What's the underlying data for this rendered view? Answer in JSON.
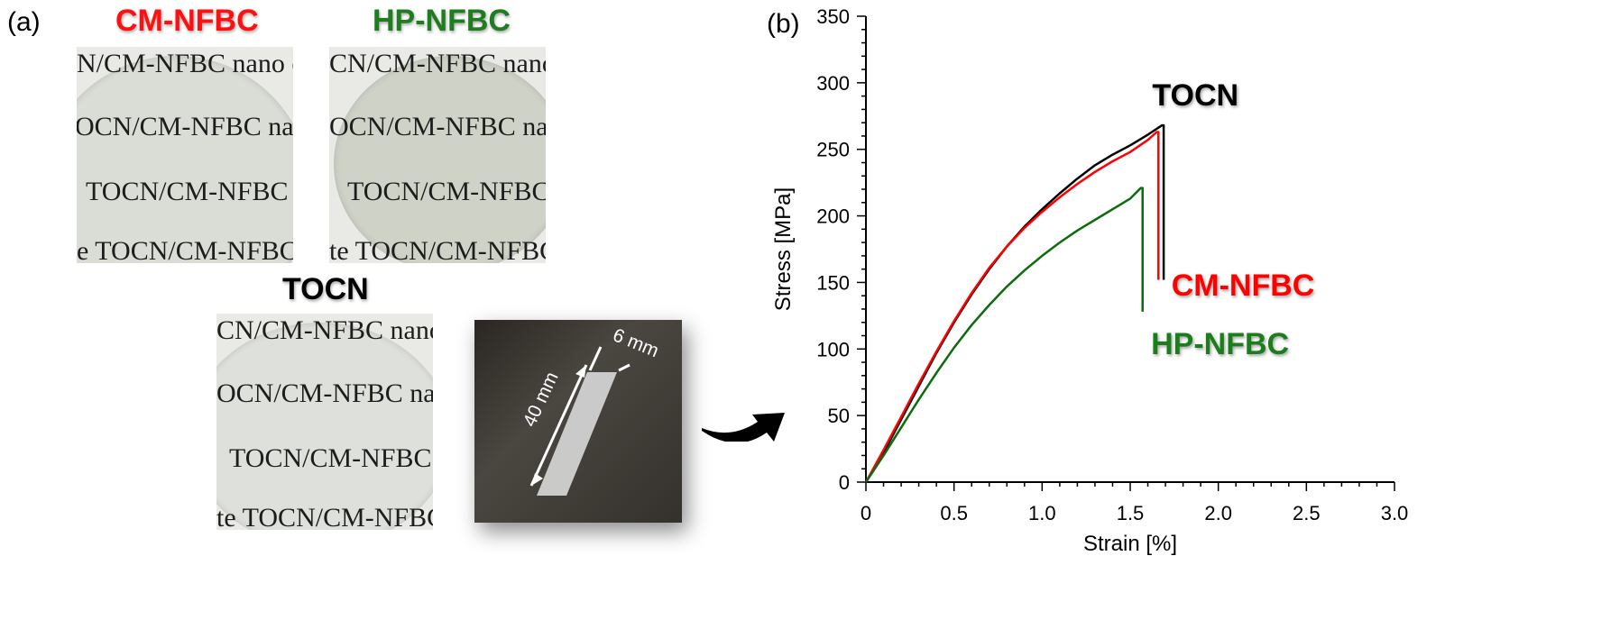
{
  "panel_a": {
    "label": "(a)",
    "samples": [
      {
        "name": "CM-NFBC",
        "color": "#ff1010"
      },
      {
        "name": "HP-NFBC",
        "color": "#1e7d1e"
      },
      {
        "name": "TOCN",
        "color": "#000000"
      }
    ],
    "photo_cm_lines": [
      "N/CM-NFBC nano c",
      "OCN/CM-NFBC nano",
      "TOCN/CM-NFBC n",
      "e    TOCN/CM-NFBC"
    ],
    "photo_hp_lines": [
      "CN/CM-NFBC nano c",
      "OCN/CM-NFBC nano",
      "TOCN/CM-NFBC n",
      "te   TOCN/CM-NFBC"
    ],
    "photo_tocn_lines": [
      "CN/CM-NFBC nano c",
      "OCN/CM-NFBC nano",
      "TOCN/CM-NFBC n",
      "te   TOCN/CM-NFBC"
    ],
    "strip": {
      "length_label": "40 mm",
      "width_label": "6 mm"
    },
    "arrow_icon": "curved-arrow-icon"
  },
  "panel_b": {
    "label": "(b)"
  },
  "chart_data": {
    "type": "line",
    "title": "",
    "xlabel": "Strain [%]",
    "ylabel": "Stress [MPa]",
    "xlim": [
      0,
      3.0
    ],
    "ylim": [
      0,
      350
    ],
    "xticks": [
      "0",
      "0.5",
      "1.0",
      "1.5",
      "2.0",
      "2.5",
      "3.0"
    ],
    "yticks": [
      "0",
      "50",
      "100",
      "150",
      "200",
      "250",
      "300",
      "350"
    ],
    "grid": false,
    "series": [
      {
        "name": "TOCN",
        "color": "#000000",
        "x": [
          0,
          0.1,
          0.2,
          0.3,
          0.4,
          0.5,
          0.6,
          0.7,
          0.8,
          0.9,
          1.0,
          1.1,
          1.2,
          1.3,
          1.4,
          1.5,
          1.6,
          1.68,
          1.69,
          1.69
        ],
        "y": [
          0,
          22,
          47,
          72,
          97,
          120,
          141,
          160,
          177,
          192,
          205,
          217,
          228,
          238,
          246,
          253,
          261,
          268,
          268,
          152
        ]
      },
      {
        "name": "CM-NFBC",
        "color": "#ff0000",
        "x": [
          0,
          0.1,
          0.2,
          0.3,
          0.4,
          0.5,
          0.6,
          0.7,
          0.8,
          0.9,
          1.0,
          1.1,
          1.2,
          1.3,
          1.4,
          1.5,
          1.6,
          1.65,
          1.66,
          1.66
        ],
        "y": [
          0,
          24,
          49,
          74,
          98,
          121,
          142,
          161,
          177,
          191,
          203,
          214,
          224,
          233,
          241,
          248,
          257,
          263,
          263,
          152
        ]
      },
      {
        "name": "HP-NFBC",
        "color": "#0d6b0d",
        "x": [
          0,
          0.1,
          0.2,
          0.3,
          0.4,
          0.5,
          0.6,
          0.7,
          0.8,
          0.9,
          1.0,
          1.1,
          1.2,
          1.3,
          1.4,
          1.5,
          1.56,
          1.57,
          1.57
        ],
        "y": [
          0,
          20,
          41,
          62,
          82,
          101,
          118,
          133,
          147,
          159,
          170,
          180,
          189,
          197,
          205,
          213,
          221,
          221,
          128
        ]
      }
    ],
    "annotations": [
      {
        "text": "TOCN",
        "color": "#000000",
        "x": 1.87,
        "y": 283
      },
      {
        "text": "CM-NFBC",
        "color": "#ff0000",
        "x": 2.14,
        "y": 140
      },
      {
        "text": "HP-NFBC",
        "color": "#1e7d1e",
        "x": 2.01,
        "y": 96
      }
    ]
  }
}
